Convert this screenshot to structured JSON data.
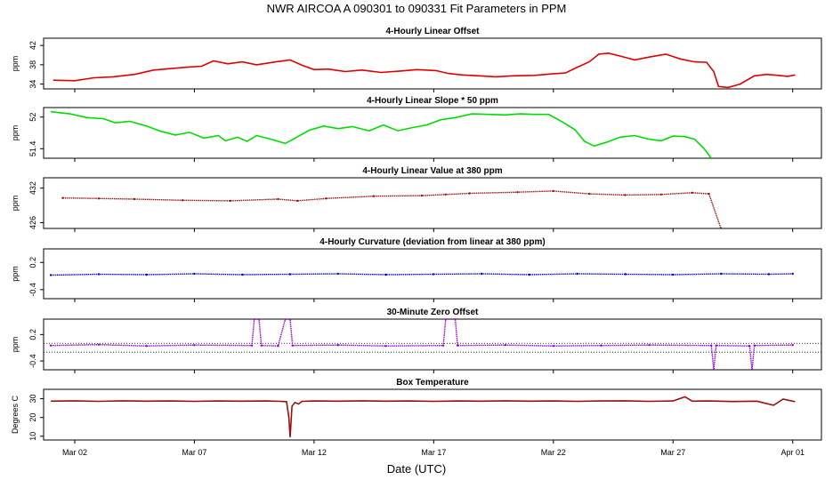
{
  "figure": {
    "title": "NWR   AIRCOA A   090301 to 090331   Fit Parameters in PPM",
    "xlabel": "Date (UTC)",
    "x_ticks": [
      "Mar 02",
      "Mar 07",
      "Mar 12",
      "Mar 17",
      "Mar 22",
      "Mar 27",
      "Apr 01"
    ],
    "x_tick_days": [
      2,
      7,
      12,
      17,
      22,
      27,
      32
    ],
    "xlim": [
      0.7,
      33.2
    ]
  },
  "chart_data": [
    {
      "type": "line",
      "title": "4-Hourly Linear Offset",
      "ylabel": "ppm",
      "ylim": [
        33,
        43.5
      ],
      "yticks": [
        34,
        38,
        42
      ],
      "color": "#e00000",
      "render": "line",
      "guides": [],
      "series": [
        {
          "points": [
            [
              1.1,
              34.8
            ],
            [
              2.0,
              34.7
            ],
            [
              2.8,
              35.3
            ],
            [
              3.6,
              35.5
            ],
            [
              4.5,
              36.0
            ],
            [
              5.3,
              36.9
            ],
            [
              6.0,
              37.2
            ],
            [
              6.7,
              37.5
            ],
            [
              7.3,
              37.7
            ],
            [
              7.8,
              38.8
            ],
            [
              8.4,
              38.2
            ],
            [
              9.0,
              38.6
            ],
            [
              9.6,
              38.0
            ],
            [
              10.4,
              38.6
            ],
            [
              11.0,
              39.0
            ],
            [
              11.5,
              37.9
            ],
            [
              12.0,
              37.0
            ],
            [
              12.6,
              37.1
            ],
            [
              13.3,
              36.6
            ],
            [
              14.0,
              36.9
            ],
            [
              14.8,
              36.4
            ],
            [
              15.6,
              36.7
            ],
            [
              16.3,
              37.0
            ],
            [
              17.1,
              36.8
            ],
            [
              17.6,
              36.2
            ],
            [
              18.2,
              35.9
            ],
            [
              18.9,
              35.7
            ],
            [
              19.6,
              35.5
            ],
            [
              20.3,
              35.7
            ],
            [
              21.2,
              35.8
            ],
            [
              21.9,
              36.1
            ],
            [
              22.5,
              36.3
            ],
            [
              23.0,
              37.5
            ],
            [
              23.5,
              38.6
            ],
            [
              23.9,
              40.2
            ],
            [
              24.3,
              40.4
            ],
            [
              24.8,
              39.8
            ],
            [
              25.4,
              39.0
            ],
            [
              26.0,
              39.6
            ],
            [
              26.7,
              40.2
            ],
            [
              27.3,
              39.2
            ],
            [
              27.9,
              38.6
            ],
            [
              28.4,
              38.5
            ],
            [
              28.7,
              36.6
            ],
            [
              28.9,
              33.5
            ],
            [
              29.3,
              33.3
            ],
            [
              29.8,
              34.0
            ],
            [
              30.4,
              35.7
            ],
            [
              30.9,
              36.0
            ],
            [
              31.4,
              35.8
            ],
            [
              31.8,
              35.6
            ],
            [
              32.1,
              35.9
            ]
          ]
        }
      ]
    },
    {
      "type": "line",
      "title": "4-Hourly Linear Slope * 50 ppm",
      "ylabel": "ppm",
      "ylim": [
        51.22,
        52.18
      ],
      "yticks": [
        51.4,
        52.0
      ],
      "color": "#00dc00",
      "render": "line",
      "guides": [],
      "series": [
        {
          "points": [
            [
              1.0,
              52.1
            ],
            [
              1.8,
              52.06
            ],
            [
              2.5,
              51.99
            ],
            [
              3.2,
              51.97
            ],
            [
              3.7,
              51.89
            ],
            [
              4.3,
              51.92
            ],
            [
              5.0,
              51.83
            ],
            [
              5.6,
              51.73
            ],
            [
              6.2,
              51.66
            ],
            [
              6.8,
              51.71
            ],
            [
              7.4,
              51.6
            ],
            [
              8.0,
              51.65
            ],
            [
              8.3,
              51.55
            ],
            [
              8.8,
              51.62
            ],
            [
              9.2,
              51.54
            ],
            [
              9.6,
              51.65
            ],
            [
              10.2,
              51.58
            ],
            [
              10.8,
              51.5
            ],
            [
              11.2,
              51.6
            ],
            [
              11.8,
              51.75
            ],
            [
              12.4,
              51.83
            ],
            [
              13.0,
              51.78
            ],
            [
              13.6,
              51.82
            ],
            [
              14.3,
              51.74
            ],
            [
              14.9,
              51.85
            ],
            [
              15.5,
              51.74
            ],
            [
              16.1,
              51.8
            ],
            [
              16.7,
              51.85
            ],
            [
              17.3,
              51.95
            ],
            [
              17.9,
              51.99
            ],
            [
              18.6,
              52.06
            ],
            [
              19.3,
              52.05
            ],
            [
              20.0,
              52.04
            ],
            [
              20.6,
              52.06
            ],
            [
              21.2,
              52.05
            ],
            [
              21.8,
              52.05
            ],
            [
              22.4,
              51.9
            ],
            [
              22.9,
              51.76
            ],
            [
              23.3,
              51.54
            ],
            [
              23.7,
              51.45
            ],
            [
              24.2,
              51.52
            ],
            [
              24.8,
              51.62
            ],
            [
              25.4,
              51.65
            ],
            [
              26.0,
              51.58
            ],
            [
              26.5,
              51.55
            ],
            [
              27.0,
              51.64
            ],
            [
              27.5,
              51.63
            ],
            [
              27.9,
              51.58
            ],
            [
              28.3,
              51.4
            ],
            [
              28.6,
              51.22
            ]
          ]
        }
      ]
    },
    {
      "type": "scatter",
      "title": "4-Hourly Linear Value at 380 ppm",
      "ylabel": "ppm",
      "ylim": [
        425.0,
        433.8
      ],
      "yticks": [
        426,
        432
      ],
      "color": "#9a1010",
      "render": "dots",
      "guides": [],
      "series": [
        {
          "points": [
            [
              1.5,
              430.3
            ],
            [
              3.0,
              430.2
            ],
            [
              4.5,
              430.1
            ],
            [
              6.5,
              429.9
            ],
            [
              8.5,
              429.8
            ],
            [
              10.5,
              430.1
            ],
            [
              11.3,
              429.8
            ],
            [
              12.5,
              430.2
            ],
            [
              14.5,
              430.6
            ],
            [
              16.5,
              430.7
            ],
            [
              17.5,
              430.9
            ],
            [
              18.5,
              431.1
            ],
            [
              20.5,
              431.3
            ],
            [
              22.0,
              431.5
            ],
            [
              23.5,
              431.0
            ],
            [
              25.0,
              430.8
            ],
            [
              26.5,
              430.9
            ],
            [
              27.8,
              431.2
            ],
            [
              28.5,
              431.0
            ],
            [
              29.0,
              425.0
            ]
          ]
        }
      ]
    },
    {
      "type": "scatter",
      "title": "4-Hourly Curvature (deviation from linear at 380 ppm)",
      "ylabel": "ppm",
      "ylim": [
        -0.6,
        0.5
      ],
      "yticks": [
        -0.4,
        0.2
      ],
      "color": "#0000cc",
      "render": "dots",
      "guides": [],
      "series": [
        {
          "points": [
            [
              1.0,
              -0.08
            ],
            [
              3.0,
              -0.06
            ],
            [
              5.0,
              -0.07
            ],
            [
              7.0,
              -0.05
            ],
            [
              9.0,
              -0.07
            ],
            [
              11.0,
              -0.06
            ],
            [
              13.0,
              -0.05
            ],
            [
              15.0,
              -0.07
            ],
            [
              17.0,
              -0.06
            ],
            [
              19.0,
              -0.05
            ],
            [
              21.0,
              -0.07
            ],
            [
              23.0,
              -0.05
            ],
            [
              25.0,
              -0.06
            ],
            [
              27.0,
              -0.07
            ],
            [
              29.0,
              -0.05
            ],
            [
              31.0,
              -0.06
            ],
            [
              32.0,
              -0.05
            ]
          ]
        }
      ]
    },
    {
      "type": "scatter",
      "title": "30-Minute Zero Offset",
      "ylabel": "ppm",
      "ylim": [
        -0.6,
        0.55
      ],
      "yticks": [
        -0.4,
        0.2
      ],
      "color": "#9400d3",
      "render": "dots",
      "guides": [
        0.0,
        -0.2
      ],
      "series": [
        {
          "points": [
            [
              1.0,
              -0.05
            ],
            [
              3.0,
              -0.03
            ],
            [
              5.0,
              -0.06
            ],
            [
              7.0,
              -0.04
            ],
            [
              9.4,
              -0.05
            ],
            [
              9.5,
              0.55
            ],
            [
              9.7,
              0.55
            ],
            [
              9.8,
              -0.05
            ],
            [
              10.5,
              -0.06
            ],
            [
              10.8,
              0.55
            ],
            [
              11.0,
              0.55
            ],
            [
              11.1,
              -0.05
            ],
            [
              13.0,
              -0.04
            ],
            [
              15.0,
              -0.06
            ],
            [
              17.4,
              -0.05
            ],
            [
              17.5,
              0.55
            ],
            [
              17.9,
              0.55
            ],
            [
              18.0,
              -0.05
            ],
            [
              20.0,
              -0.04
            ],
            [
              22.0,
              -0.06
            ],
            [
              24.0,
              -0.05
            ],
            [
              26.0,
              -0.04
            ],
            [
              28.6,
              -0.05
            ],
            [
              28.7,
              -0.6
            ],
            [
              28.8,
              -0.05
            ],
            [
              30.2,
              -0.06
            ],
            [
              30.3,
              -0.6
            ],
            [
              30.4,
              -0.05
            ],
            [
              32.0,
              -0.04
            ]
          ]
        }
      ]
    },
    {
      "type": "line",
      "title": "Box Temperature",
      "ylabel": "Degrees C",
      "ylim": [
        8,
        35
      ],
      "yticks": [
        10,
        20,
        30
      ],
      "color": "#9a1010",
      "render": "line",
      "guides": [],
      "series": [
        {
          "points": [
            [
              1.0,
              28.7
            ],
            [
              2.0,
              28.9
            ],
            [
              3.0,
              28.6
            ],
            [
              4.0,
              28.9
            ],
            [
              5.0,
              28.7
            ],
            [
              6.0,
              28.8
            ],
            [
              7.0,
              28.6
            ],
            [
              8.0,
              28.8
            ],
            [
              9.0,
              28.7
            ],
            [
              10.0,
              28.8
            ],
            [
              10.6,
              28.6
            ],
            [
              10.85,
              28.4
            ],
            [
              10.95,
              20.0
            ],
            [
              11.0,
              9.5
            ],
            [
              11.08,
              26.0
            ],
            [
              11.2,
              28.0
            ],
            [
              11.35,
              27.2
            ],
            [
              11.5,
              28.6
            ],
            [
              12.0,
              28.8
            ],
            [
              13.0,
              28.7
            ],
            [
              14.0,
              28.9
            ],
            [
              15.0,
              28.7
            ],
            [
              16.0,
              28.8
            ],
            [
              17.0,
              28.6
            ],
            [
              18.0,
              28.8
            ],
            [
              19.0,
              28.7
            ],
            [
              20.0,
              28.9
            ],
            [
              21.0,
              28.7
            ],
            [
              22.0,
              28.8
            ],
            [
              23.0,
              28.6
            ],
            [
              24.0,
              28.8
            ],
            [
              25.0,
              28.9
            ],
            [
              26.0,
              28.6
            ],
            [
              27.0,
              28.8
            ],
            [
              27.5,
              31.0
            ],
            [
              27.8,
              28.7
            ],
            [
              28.5,
              28.8
            ],
            [
              29.5,
              28.5
            ],
            [
              30.5,
              28.7
            ],
            [
              31.2,
              26.5
            ],
            [
              31.6,
              29.8
            ],
            [
              32.1,
              28.4
            ]
          ]
        }
      ]
    }
  ]
}
